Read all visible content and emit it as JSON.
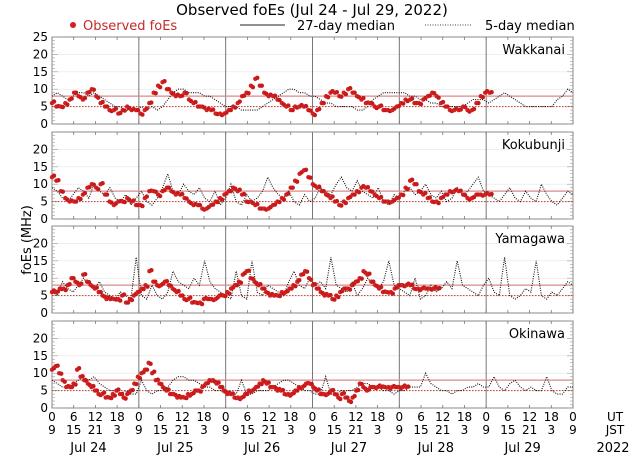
{
  "chart_data": {
    "type": "scatter",
    "title": "Observed foEs (Jul 24 - Jul 29, 2022)",
    "ylabel": "foEs (MHz)",
    "ylim": [
      0,
      25
    ],
    "yticks": [
      0,
      5,
      10,
      15,
      20,
      25
    ],
    "legend": {
      "placement": "top",
      "entries": [
        {
          "label": "Observed foEs",
          "style": "red-dots",
          "color": "#d42020"
        },
        {
          "label": "27-day median",
          "style": "solid"
        },
        {
          "label": "5-day median",
          "style": "dotted"
        }
      ]
    },
    "x_axis": {
      "ut_labels": [
        "0",
        "6",
        "12",
        "18",
        "0",
        "6",
        "12",
        "18",
        "0",
        "6",
        "12",
        "18",
        "0",
        "6",
        "12",
        "18",
        "0",
        "6",
        "12",
        "18",
        "0",
        "6",
        "12",
        "18",
        "0"
      ],
      "jst_labels": [
        "9",
        "15",
        "21",
        "3",
        "9",
        "15",
        "21",
        "3",
        "9",
        "15",
        "21",
        "3",
        "9",
        "15",
        "21",
        "3",
        "9",
        "15",
        "21",
        "3",
        "9",
        "15",
        "21",
        "3",
        "9"
      ],
      "ut_unit": "UT",
      "jst_unit": "JST",
      "days": [
        "Jul 24",
        "Jul 25",
        "Jul 26",
        "Jul 27",
        "Jul 28",
        "Jul 29"
      ],
      "year": "2022"
    },
    "panels": [
      {
        "station": "Wakkanai",
        "median27": 8,
        "median5_ref": 5,
        "observed_profile": [
          6,
          5,
          5,
          6,
          7,
          9,
          8,
          7,
          9,
          10,
          8,
          6,
          5,
          4,
          4,
          3,
          4,
          5,
          4,
          4,
          3,
          4,
          6,
          9,
          11,
          12,
          10,
          9,
          8,
          8,
          9,
          7,
          6,
          5,
          5,
          4,
          4,
          3,
          3,
          3,
          4,
          5,
          6,
          8,
          9,
          11,
          13,
          11,
          9,
          8,
          8,
          7,
          6,
          5,
          4,
          5,
          5,
          5,
          4,
          3,
          4,
          6,
          8,
          9,
          9,
          8,
          9,
          10,
          9,
          8,
          7,
          6,
          6,
          5,
          5,
          4,
          4,
          4,
          5,
          6,
          7,
          7,
          6,
          6,
          7,
          8,
          9,
          8,
          6,
          5,
          4,
          4,
          4,
          5,
          4,
          4,
          6,
          8,
          9,
          9
        ],
        "observed_until": 0.84,
        "median5_profile": [
          8,
          9,
          8,
          7,
          8,
          9,
          9,
          8,
          9,
          8,
          7,
          6,
          5,
          5,
          4,
          4,
          4,
          5,
          4,
          5,
          4,
          5,
          7,
          9,
          10,
          10,
          9,
          9,
          9,
          8,
          8,
          7,
          6,
          5,
          5,
          5,
          4,
          4,
          4,
          4,
          5,
          6,
          7,
          8,
          9,
          10,
          10,
          9,
          9,
          8,
          8,
          7,
          6,
          6,
          5,
          5,
          5,
          5,
          4,
          4,
          5,
          7,
          8,
          9,
          9,
          9,
          9,
          9,
          8,
          8,
          7,
          7,
          6,
          6,
          5,
          5,
          5,
          5,
          5,
          6,
          7,
          7,
          7,
          6,
          7,
          8,
          9,
          8,
          7,
          6,
          5,
          5,
          5,
          5,
          5,
          5,
          7,
          8,
          10,
          9
        ]
      },
      {
        "station": "Kokubunji",
        "median27": 8,
        "median5_ref": 5,
        "observed_profile": [
          12,
          11,
          8,
          6,
          5,
          5,
          6,
          7,
          9,
          10,
          9,
          10,
          7,
          5,
          4,
          5,
          5,
          6,
          5,
          4,
          4,
          6,
          8,
          8,
          7,
          8,
          9,
          8,
          7,
          7,
          6,
          5,
          4,
          4,
          3,
          3,
          4,
          5,
          6,
          7,
          8,
          9,
          8,
          7,
          5,
          5,
          4,
          3,
          3,
          3,
          4,
          5,
          6,
          7,
          9,
          11,
          13,
          14,
          12,
          10,
          9,
          8,
          7,
          6,
          5,
          4,
          5,
          6,
          7,
          8,
          9,
          9,
          8,
          7,
          6,
          5,
          5,
          5,
          6,
          7,
          9,
          11,
          10,
          8,
          7,
          6,
          5,
          5,
          6,
          7,
          8,
          8,
          8,
          7,
          6,
          6,
          7,
          7,
          7,
          7
        ],
        "observed_until": 0.84,
        "median5_profile": [
          9,
          8,
          6,
          5,
          7,
          9,
          8,
          6,
          10,
          8,
          7,
          9,
          6,
          5,
          7,
          4,
          6,
          8,
          5,
          4,
          6,
          9,
          13,
          8,
          7,
          10,
          8,
          7,
          9,
          6,
          5,
          8,
          4,
          6,
          10,
          5,
          4,
          7,
          5,
          6,
          8,
          12,
          9,
          7,
          6,
          8,
          5,
          4,
          7,
          5,
          6,
          9,
          8,
          7,
          10,
          12,
          9,
          8,
          11,
          8,
          7,
          6,
          9,
          5,
          4,
          7,
          6,
          8,
          9,
          7,
          8,
          10,
          7,
          6,
          8,
          5,
          6,
          9,
          7,
          8,
          10,
          12,
          8,
          7,
          6,
          5,
          7,
          9,
          6,
          5,
          8,
          6,
          5,
          10,
          7,
          5,
          4,
          6,
          8,
          7
        ]
      },
      {
        "station": "Yamagawa",
        "median27": 8,
        "median5_ref": 5,
        "observed_profile": [
          6,
          6,
          7,
          7,
          8,
          10,
          9,
          8,
          11,
          9,
          8,
          7,
          6,
          5,
          4,
          4,
          4,
          4,
          5,
          3,
          4,
          5,
          6,
          7,
          8,
          12,
          9,
          8,
          8,
          9,
          8,
          7,
          6,
          5,
          4,
          4,
          3,
          3,
          3,
          4,
          4,
          4,
          4,
          5,
          5,
          6,
          7,
          8,
          9,
          11,
          12,
          10,
          9,
          8,
          7,
          6,
          5,
          5,
          5,
          6,
          6,
          7,
          8,
          9,
          11,
          12,
          10,
          8,
          7,
          6,
          5,
          5,
          4,
          5,
          6,
          7,
          7,
          8,
          9,
          10,
          12,
          11,
          9,
          8,
          7,
          6,
          6,
          6,
          7,
          8,
          8,
          8,
          8,
          7,
          7,
          7,
          7,
          7,
          7,
          7
        ],
        "observed_until": 0.74,
        "median5_profile": [
          6,
          5,
          9,
          7,
          6,
          8,
          10,
          8,
          7,
          9,
          6,
          5,
          4,
          6,
          5,
          4,
          16,
          5,
          4,
          8,
          5,
          4,
          6,
          12,
          9,
          8,
          7,
          10,
          8,
          15,
          9,
          7,
          6,
          5,
          4,
          12,
          5,
          4,
          15,
          6,
          5,
          8,
          7,
          6,
          5,
          9,
          12,
          8,
          7,
          10,
          8,
          9,
          7,
          16,
          8,
          7,
          6,
          9,
          5,
          7,
          10,
          8,
          7,
          9,
          15,
          8,
          7,
          6,
          5,
          10,
          4,
          5,
          8,
          6,
          7,
          9,
          7,
          15,
          8,
          7,
          6,
          5,
          8,
          10,
          6,
          5,
          16,
          5,
          4,
          5,
          7,
          6,
          15,
          5,
          4,
          6,
          5,
          7,
          9,
          8
        ]
      },
      {
        "station": "Okinawa",
        "median27": 8,
        "median5_ref": 5,
        "observed_profile": [
          11,
          12,
          10,
          8,
          6,
          6,
          7,
          11,
          9,
          8,
          7,
          6,
          5,
          4,
          4,
          3,
          3,
          4,
          5,
          4,
          3,
          4,
          5,
          7,
          9,
          10,
          11,
          13,
          10,
          8,
          7,
          6,
          5,
          4,
          4,
          3,
          3,
          3,
          4,
          4,
          5,
          5,
          6,
          7,
          8,
          8,
          7,
          6,
          5,
          4,
          4,
          3,
          3,
          3,
          4,
          5,
          5,
          6,
          7,
          8,
          7,
          6,
          6,
          5,
          5,
          4,
          4,
          4,
          5,
          6,
          6,
          7,
          7,
          6,
          5,
          4,
          4,
          4,
          5,
          4,
          3,
          4,
          3,
          2,
          3,
          5,
          7,
          6,
          5,
          6,
          6,
          6,
          6,
          6,
          6,
          6,
          6,
          6,
          6,
          6
        ],
        "observed_until": 0.68,
        "median5_profile": [
          8,
          7,
          6,
          6,
          7,
          8,
          9,
          8,
          9,
          7,
          6,
          5,
          5,
          4,
          5,
          4,
          4,
          8,
          5,
          4,
          5,
          5,
          6,
          8,
          9,
          9,
          8,
          8,
          7,
          6,
          6,
          5,
          5,
          4,
          4,
          4,
          8,
          4,
          4,
          5,
          5,
          5,
          6,
          7,
          8,
          8,
          7,
          6,
          5,
          5,
          4,
          4,
          9,
          4,
          4,
          5,
          5,
          5,
          6,
          7,
          7,
          6,
          6,
          5,
          5,
          4,
          5,
          5,
          6,
          6,
          6,
          10,
          7,
          6,
          5,
          5,
          4,
          5,
          5,
          6,
          6,
          7,
          6,
          6,
          9,
          6,
          5,
          7,
          8,
          6,
          5,
          6,
          5,
          5,
          9,
          5,
          4,
          4,
          6,
          6
        ]
      }
    ]
  }
}
